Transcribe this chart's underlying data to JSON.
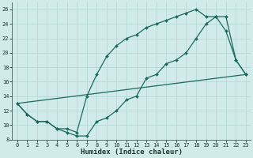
{
  "xlabel": "Humidex (Indice chaleur)",
  "background_color": "#d0ebe8",
  "grid_color": "#b8d8d4",
  "line_color": "#1a6b5a",
  "xlim": [
    -0.5,
    23.5
  ],
  "ylim": [
    8,
    27
  ],
  "xticks": [
    0,
    1,
    2,
    3,
    4,
    5,
    6,
    7,
    8,
    9,
    10,
    11,
    12,
    13,
    14,
    15,
    16,
    17,
    18,
    19,
    20,
    21,
    22,
    23
  ],
  "yticks": [
    8,
    10,
    12,
    14,
    16,
    18,
    20,
    22,
    24,
    26
  ],
  "curve1_x": [
    0,
    1,
    2,
    3,
    4,
    5,
    6,
    7,
    8,
    9,
    10,
    11,
    12,
    13,
    14,
    15,
    16,
    17,
    18,
    19,
    20,
    21,
    22,
    23
  ],
  "curve1_y": [
    13,
    11.5,
    10.5,
    10.5,
    9.5,
    9.5,
    9,
    14,
    17,
    19.5,
    21,
    22,
    22.5,
    23.5,
    24,
    24.5,
    25,
    25.5,
    26,
    25,
    25,
    23,
    19,
    17
  ],
  "curve2_x": [
    0,
    1,
    2,
    3,
    4,
    5,
    6,
    7,
    8,
    9,
    10,
    11,
    12,
    13,
    14,
    15,
    16,
    17,
    18,
    19,
    20,
    21,
    22,
    23
  ],
  "curve2_y": [
    13,
    11.5,
    10.5,
    10.5,
    9.5,
    9,
    8.5,
    8.5,
    10.5,
    11,
    12,
    13.5,
    14,
    16.5,
    17,
    18.5,
    19,
    20,
    22,
    24,
    25,
    25,
    19,
    17
  ],
  "line3_x": [
    0,
    23
  ],
  "line3_y": [
    13,
    17
  ]
}
